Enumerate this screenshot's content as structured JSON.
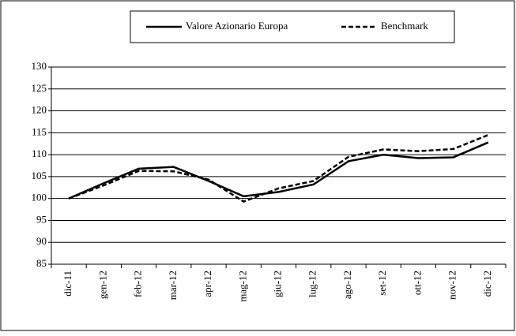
{
  "chart_data": {
    "type": "line",
    "categories": [
      "dic-11",
      "gen-12",
      "feb-12",
      "mar-12",
      "apr-12",
      "mag-12",
      "giu-12",
      "lug-12",
      "ago-12",
      "set-12",
      "ott-12",
      "nov-12",
      "dic-12"
    ],
    "series": [
      {
        "name": "Valore Azionario Europa",
        "color": "#000000",
        "dash": false,
        "values": [
          100,
          103.5,
          106.8,
          107.2,
          104,
          100.5,
          101.5,
          103.2,
          108.5,
          110,
          109.2,
          109.4,
          112.8
        ]
      },
      {
        "name": "Benchmark",
        "color": "#000000",
        "dash": true,
        "values": [
          100,
          103,
          106.3,
          106.2,
          104.3,
          99.3,
          102.3,
          104,
          109.5,
          111.2,
          110.8,
          111.3,
          114.5
        ]
      }
    ],
    "ylim": [
      85,
      130
    ],
    "yticks": [
      85,
      90,
      95,
      100,
      105,
      110,
      115,
      120,
      125,
      130
    ],
    "grid": true,
    "legend": "top"
  }
}
